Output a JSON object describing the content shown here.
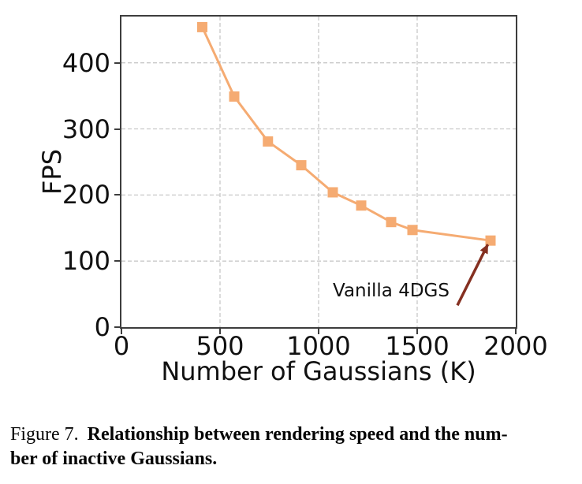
{
  "figure": {
    "caption_prefix": "Figure 7.",
    "caption_bold_line1": "Relationship between rendering speed and the num-",
    "caption_bold_line2": "ber of inactive Gaussians."
  },
  "chart_data": {
    "type": "line",
    "x": [
      410,
      572,
      743,
      912,
      1072,
      1216,
      1368,
      1476,
      1872
    ],
    "y": [
      454,
      349,
      281,
      245,
      204,
      184,
      159,
      147,
      131
    ],
    "xlabel": "Number of Gaussians (K)",
    "ylabel": "FPS",
    "xlim": [
      0,
      2000
    ],
    "ylim": [
      0,
      470
    ],
    "x_ticks": [
      0,
      500,
      1000,
      1500,
      2000
    ],
    "y_ticks": [
      0,
      100,
      200,
      300,
      400
    ],
    "grid": "dashed",
    "legend": "none",
    "marker": "square",
    "line_color": "#F5AB72",
    "grid_color": "#c8c8c8",
    "spine_color": "#3d3d3d",
    "annotation": {
      "text": "Vanilla 4DGS",
      "text_pos": [
        1368,
        55
      ],
      "arrow_tail": [
        1704,
        33
      ],
      "arrow_head": [
        1858,
        125
      ],
      "arrow_color": "#853021"
    }
  }
}
